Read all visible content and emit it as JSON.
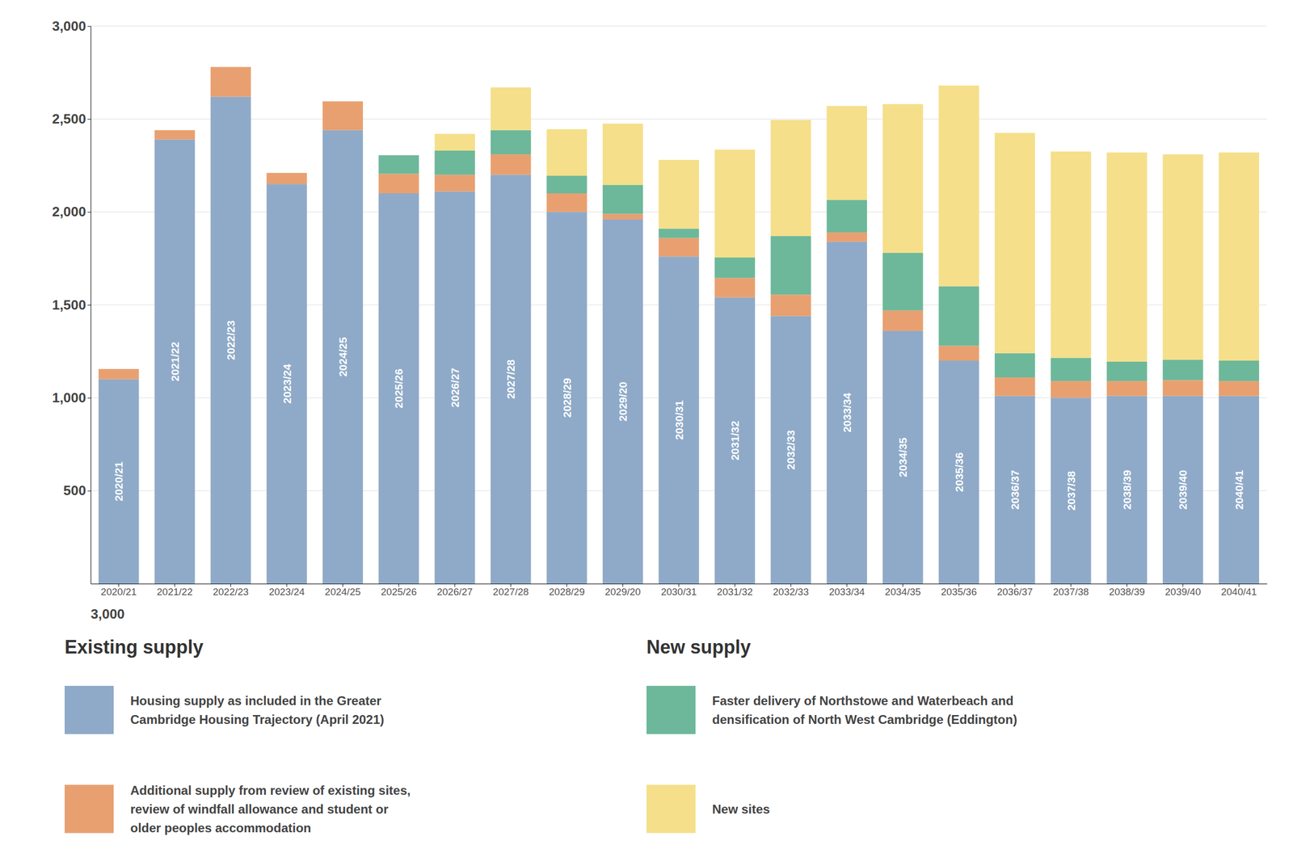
{
  "chart_data": {
    "type": "bar",
    "stacked": true,
    "grid": true,
    "legend": "bottom",
    "categories": [
      "2020/21",
      "2021/22",
      "2022/23",
      "2023/24",
      "2024/25",
      "2025/26",
      "2026/27",
      "2027/28",
      "2028/29",
      "2029/20",
      "2030/31",
      "2031/32",
      "2032/33",
      "2033/34",
      "2034/35",
      "2035/36",
      "2036/37",
      "2037/38",
      "2038/39",
      "2039/40",
      "2040/41"
    ],
    "series": [
      {
        "name": "Housing supply as included in the Greater\nCambridge Housing Trajectory (April 2021)",
        "group": "Existing supply",
        "color": "#8faac8",
        "values": [
          1100,
          2390,
          2620,
          2150,
          2440,
          2100,
          2110,
          2200,
          2000,
          1960,
          1760,
          1540,
          1440,
          1840,
          1360,
          1200,
          1010,
          1000,
          1010,
          1010,
          1010
        ]
      },
      {
        "name": "Additional supply from review of existing sites,\nreview of windfall allowance and student or\nolder peoples accommodation",
        "group": "Existing supply",
        "color": "#e8a070",
        "values": [
          55,
          50,
          160,
          60,
          155,
          105,
          90,
          110,
          100,
          30,
          100,
          105,
          115,
          50,
          110,
          80,
          100,
          90,
          80,
          85,
          80
        ]
      },
      {
        "name": "Faster delivery of Northstowe and Waterbeach and\ndensification of North West Cambridge (Eddington)",
        "group": "New supply",
        "color": "#6db89a",
        "values": [
          0,
          0,
          0,
          0,
          0,
          100,
          130,
          130,
          95,
          155,
          50,
          110,
          315,
          175,
          310,
          320,
          130,
          125,
          105,
          110,
          110
        ]
      },
      {
        "name": "New sites",
        "group": "New supply",
        "color": "#f5df8a",
        "values": [
          0,
          0,
          0,
          0,
          0,
          0,
          90,
          230,
          250,
          330,
          370,
          580,
          625,
          505,
          800,
          1080,
          1185,
          1110,
          1125,
          1105,
          1120
        ]
      }
    ],
    "ylim": [
      0,
      3000
    ],
    "yticks": [
      500,
      {
        "value": 1000,
        "label": "1,000"
      },
      {
        "value": 1500,
        "label": "1,500"
      },
      {
        "value": 2000,
        "label": "2,000"
      },
      {
        "value": 2500,
        "label": "2,500"
      },
      {
        "value": 3000,
        "label": "3,000"
      }
    ],
    "annotations": [
      "3,000"
    ]
  }
}
